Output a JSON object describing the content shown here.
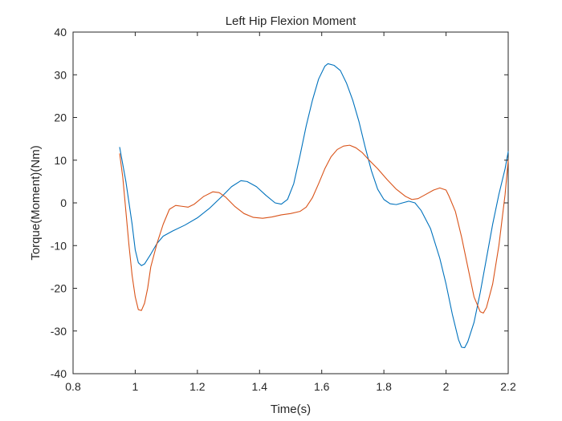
{
  "chart_data": {
    "type": "line",
    "title": "Left Hip Flexion Moment",
    "xlabel": "Time(s)",
    "ylabel": "Torque(Moment)(Nm)",
    "xlim": [
      0.8,
      2.2
    ],
    "ylim": [
      -40,
      40
    ],
    "x_ticks": [
      0.8,
      1,
      1.2,
      1.4,
      1.6,
      1.8,
      2,
      2.2
    ],
    "x_tick_labels": [
      "0.8",
      "1",
      "1.2",
      "1.4",
      "1.6",
      "1.8",
      "2",
      "2.2"
    ],
    "y_ticks": [
      -40,
      -30,
      -20,
      -10,
      0,
      10,
      20,
      30,
      40
    ],
    "y_tick_labels": [
      "-40",
      "-30",
      "-20",
      "-10",
      "0",
      "10",
      "20",
      "30",
      "40"
    ],
    "grid": false,
    "legend": "none",
    "series": [
      {
        "color": "#0072BD",
        "points": [
          [
            0.95,
            13
          ],
          [
            0.97,
            5
          ],
          [
            0.99,
            -5
          ],
          [
            1.0,
            -11
          ],
          [
            1.01,
            -14
          ],
          [
            1.02,
            -14.7
          ],
          [
            1.03,
            -14.3
          ],
          [
            1.05,
            -12
          ],
          [
            1.07,
            -9.5
          ],
          [
            1.09,
            -7.8
          ],
          [
            1.12,
            -6.6
          ],
          [
            1.16,
            -5.2
          ],
          [
            1.2,
            -3.5
          ],
          [
            1.24,
            -1.2
          ],
          [
            1.28,
            1.6
          ],
          [
            1.31,
            3.8
          ],
          [
            1.34,
            5.2
          ],
          [
            1.36,
            5.0
          ],
          [
            1.39,
            3.8
          ],
          [
            1.42,
            1.8
          ],
          [
            1.45,
            0
          ],
          [
            1.47,
            -0.3
          ],
          [
            1.49,
            0.8
          ],
          [
            1.51,
            4.5
          ],
          [
            1.53,
            11
          ],
          [
            1.55,
            18
          ],
          [
            1.57,
            24
          ],
          [
            1.59,
            29
          ],
          [
            1.61,
            32
          ],
          [
            1.62,
            32.6
          ],
          [
            1.64,
            32.2
          ],
          [
            1.66,
            31
          ],
          [
            1.68,
            28
          ],
          [
            1.7,
            24
          ],
          [
            1.72,
            19
          ],
          [
            1.74,
            13
          ],
          [
            1.76,
            7.5
          ],
          [
            1.78,
            3.2
          ],
          [
            1.8,
            0.8
          ],
          [
            1.82,
            -0.2
          ],
          [
            1.84,
            -0.4
          ],
          [
            1.86,
            0
          ],
          [
            1.88,
            0.4
          ],
          [
            1.9,
            0
          ],
          [
            1.92,
            -1.8
          ],
          [
            1.95,
            -6
          ],
          [
            1.98,
            -13
          ],
          [
            2.0,
            -19
          ],
          [
            2.02,
            -26
          ],
          [
            2.04,
            -32
          ],
          [
            2.05,
            -33.8
          ],
          [
            2.06,
            -33.9
          ],
          [
            2.07,
            -32.5
          ],
          [
            2.09,
            -28
          ],
          [
            2.11,
            -21
          ],
          [
            2.13,
            -13
          ],
          [
            2.15,
            -5
          ],
          [
            2.17,
            2
          ],
          [
            2.19,
            8
          ],
          [
            2.2,
            12
          ]
        ]
      },
      {
        "color": "#D95319",
        "points": [
          [
            0.95,
            11.5
          ],
          [
            0.96,
            6
          ],
          [
            0.97,
            -2
          ],
          [
            0.98,
            -10
          ],
          [
            0.99,
            -17
          ],
          [
            1.0,
            -22
          ],
          [
            1.01,
            -25
          ],
          [
            1.02,
            -25.2
          ],
          [
            1.03,
            -23.5
          ],
          [
            1.04,
            -20
          ],
          [
            1.05,
            -15
          ],
          [
            1.07,
            -9.5
          ],
          [
            1.09,
            -5
          ],
          [
            1.11,
            -1.5
          ],
          [
            1.13,
            -0.6
          ],
          [
            1.15,
            -0.8
          ],
          [
            1.17,
            -1.0
          ],
          [
            1.19,
            -0.3
          ],
          [
            1.22,
            1.5
          ],
          [
            1.25,
            2.6
          ],
          [
            1.27,
            2.4
          ],
          [
            1.29,
            1.4
          ],
          [
            1.32,
            -0.8
          ],
          [
            1.35,
            -2.5
          ],
          [
            1.38,
            -3.4
          ],
          [
            1.41,
            -3.6
          ],
          [
            1.44,
            -3.3
          ],
          [
            1.47,
            -2.8
          ],
          [
            1.5,
            -2.5
          ],
          [
            1.53,
            -2.0
          ],
          [
            1.55,
            -1.0
          ],
          [
            1.57,
            1.2
          ],
          [
            1.59,
            4.5
          ],
          [
            1.61,
            8
          ],
          [
            1.63,
            10.8
          ],
          [
            1.65,
            12.5
          ],
          [
            1.67,
            13.3
          ],
          [
            1.69,
            13.5
          ],
          [
            1.71,
            12.9
          ],
          [
            1.73,
            11.8
          ],
          [
            1.75,
            10.2
          ],
          [
            1.78,
            8
          ],
          [
            1.81,
            5.5
          ],
          [
            1.84,
            3.2
          ],
          [
            1.87,
            1.5
          ],
          [
            1.89,
            0.8
          ],
          [
            1.91,
            1.0
          ],
          [
            1.93,
            1.8
          ],
          [
            1.96,
            3.0
          ],
          [
            1.98,
            3.5
          ],
          [
            2.0,
            3.0
          ],
          [
            2.01,
            1.5
          ],
          [
            2.03,
            -2
          ],
          [
            2.05,
            -8
          ],
          [
            2.07,
            -15
          ],
          [
            2.09,
            -22
          ],
          [
            2.11,
            -25.5
          ],
          [
            2.12,
            -25.8
          ],
          [
            2.13,
            -24.5
          ],
          [
            2.15,
            -19
          ],
          [
            2.17,
            -10
          ],
          [
            2.19,
            2
          ],
          [
            2.2,
            10
          ]
        ]
      }
    ]
  }
}
